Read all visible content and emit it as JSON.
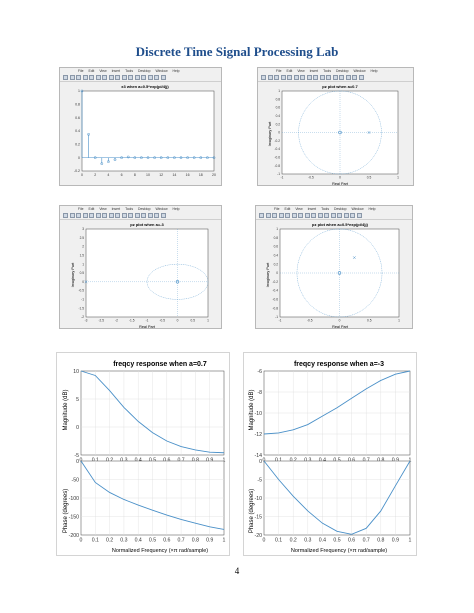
{
  "header": {
    "title": "Discrete Time Signal Processing Lab"
  },
  "menu": [
    "File",
    "Edit",
    "View",
    "Insert",
    "Tools",
    "Desktop",
    "Window",
    "Help"
  ],
  "figures": {
    "stem": {
      "title": "x3 when a=0.5*exp(pi/4)j)",
      "yticks": [
        "1",
        "0.8",
        "0.6",
        "0.4",
        "0.2",
        "0",
        "-0.2"
      ],
      "xticks": [
        "0",
        "2",
        "4",
        "6",
        "8",
        "10",
        "12",
        "14",
        "16",
        "18",
        "20"
      ]
    },
    "pz1": {
      "title": "pz plot when a=0.7",
      "xlabel": "Real Part",
      "ylabel": "Imaginary Part",
      "yticks": [
        "1",
        "0.8",
        "0.6",
        "0.4",
        "0.2",
        "0",
        "-0.2",
        "-0.4",
        "-0.6",
        "-0.8",
        "-1"
      ],
      "xticks": [
        "-1",
        "-0.5",
        "0",
        "0.5",
        "1"
      ]
    },
    "pz2": {
      "title": "pz plot when a=-3",
      "xlabel": "Real Part",
      "ylabel": "Imaginary Part",
      "yticks": [
        "3",
        "2.5",
        "2",
        "1.5",
        "1",
        "0.5",
        "0",
        "-0.5",
        "-1",
        "-1.5",
        "-2"
      ],
      "xticks": [
        "-3",
        "-2.5",
        "-2",
        "-1.5",
        "-1",
        "-0.5",
        "0",
        "0.5",
        "1"
      ]
    },
    "pz3": {
      "title": "pz plot when a=0.5*exp(pi/4)j)",
      "xlabel": "Real Part",
      "ylabel": "Imaginary Part",
      "yticks": [
        "1",
        "0.8",
        "0.6",
        "0.4",
        "0.2",
        "0",
        "-0.2",
        "-0.4",
        "-0.6",
        "-0.8",
        "-1"
      ],
      "xticks": [
        "-1",
        "-0.5",
        "0",
        "0.5",
        "1"
      ]
    },
    "freq1": {
      "title": "freqcy response when a=0.7",
      "mag_ylabel": "Magnitude (dB)",
      "mag_yticks": [
        "10",
        "5",
        "0",
        "-5"
      ],
      "phase_ylabel": "Phase (degrees)",
      "phase_yticks": [
        "0",
        "-50",
        "-100",
        "-150",
        "-200"
      ],
      "xlabel": "Normalized Frequency  (×π rad/sample)",
      "xticks": [
        "0",
        "0.1",
        "0.2",
        "0.3",
        "0.4",
        "0.5",
        "0.6",
        "0.7",
        "0.8",
        "0.9",
        "1"
      ]
    },
    "freq2": {
      "title": "freqcy response when a=-3",
      "mag_ylabel": "Magnitude (dB)",
      "mag_yticks": [
        "-6",
        "-8",
        "-10",
        "-12",
        "-14"
      ],
      "phase_ylabel": "Phase (degrees)",
      "phase_yticks": [
        "0",
        "-5",
        "-10",
        "-15",
        "-20"
      ],
      "xlabel": "Normalized Frequency  (×π rad/sample)",
      "xticks": [
        "0",
        "0.1",
        "0.2",
        "0.3",
        "0.4",
        "0.5",
        "0.6",
        "0.7",
        "0.8",
        "0.9",
        "1"
      ]
    }
  },
  "chart_data": [
    {
      "type": "scatter",
      "title": "x3 when a=0.5*exp(pi/4)j)",
      "x": [
        0,
        1,
        2,
        3,
        4,
        5,
        6,
        7,
        8,
        9,
        10,
        11,
        12,
        13,
        14,
        15,
        16,
        17,
        18,
        19,
        20
      ],
      "y": [
        1,
        0.35,
        0,
        -0.09,
        -0.06,
        -0.03,
        0,
        0.01,
        0,
        0,
        0,
        0,
        0,
        0,
        0,
        0,
        0,
        0,
        0,
        0,
        0
      ],
      "xlim": [
        0,
        20
      ],
      "ylim": [
        -0.2,
        1
      ]
    },
    {
      "type": "scatter",
      "title": "pz plot when a=0.7",
      "series": [
        {
          "name": "zero",
          "x": [
            0
          ],
          "y": [
            0
          ]
        },
        {
          "name": "pole",
          "x": [
            0.7
          ],
          "y": [
            0
          ]
        }
      ],
      "xlim": [
        -1.4,
        1.4
      ],
      "ylim": [
        -1,
        1
      ]
    },
    {
      "type": "scatter",
      "title": "pz plot when a=-3",
      "series": [
        {
          "name": "zero",
          "x": [
            0
          ],
          "y": [
            0
          ]
        },
        {
          "name": "pole",
          "x": [
            -3
          ],
          "y": [
            0
          ]
        }
      ],
      "xlim": [
        -3,
        1
      ],
      "ylim": [
        -2,
        3
      ]
    },
    {
      "type": "scatter",
      "title": "pz plot when a=0.5*exp(pi/4)j)",
      "series": [
        {
          "name": "zero",
          "x": [
            0
          ],
          "y": [
            0
          ]
        },
        {
          "name": "pole",
          "x": [
            0.35
          ],
          "y": [
            0.35
          ]
        }
      ],
      "xlim": [
        -1.4,
        1.4
      ],
      "ylim": [
        -1,
        1
      ]
    },
    {
      "type": "line",
      "title": "freqcy response when a=0.7",
      "x": [
        0,
        0.1,
        0.2,
        0.3,
        0.4,
        0.5,
        0.6,
        0.7,
        0.8,
        0.9,
        1
      ],
      "magnitude_db": [
        10.5,
        9.2,
        6.5,
        3.5,
        1.0,
        -1.0,
        -2.5,
        -3.5,
        -4.1,
        -4.5,
        -4.6
      ],
      "phase_deg": [
        0,
        -58,
        -85,
        -104,
        -119,
        -133,
        -146,
        -158,
        -168,
        -178,
        -185
      ],
      "xlim": [
        0,
        1
      ],
      "mag_ylim": [
        -5,
        12
      ],
      "phase_ylim": [
        -200,
        0
      ]
    },
    {
      "type": "line",
      "title": "freqcy response when a=-3",
      "x": [
        0,
        0.1,
        0.2,
        0.3,
        0.4,
        0.5,
        0.6,
        0.7,
        0.8,
        0.9,
        1
      ],
      "magnitude_db": [
        -12,
        -11.9,
        -11.6,
        -11.1,
        -10.3,
        -9.5,
        -8.6,
        -7.7,
        -6.9,
        -6.3,
        -6
      ],
      "phase_deg": [
        0,
        -5,
        -9.5,
        -13.5,
        -16.8,
        -19,
        -19.8,
        -18.2,
        -13.5,
        -6.7,
        0
      ],
      "xlim": [
        0,
        1
      ],
      "mag_ylim": [
        -14,
        -6
      ],
      "phase_ylim": [
        -20,
        0
      ]
    }
  ],
  "page": {
    "number": "4"
  }
}
